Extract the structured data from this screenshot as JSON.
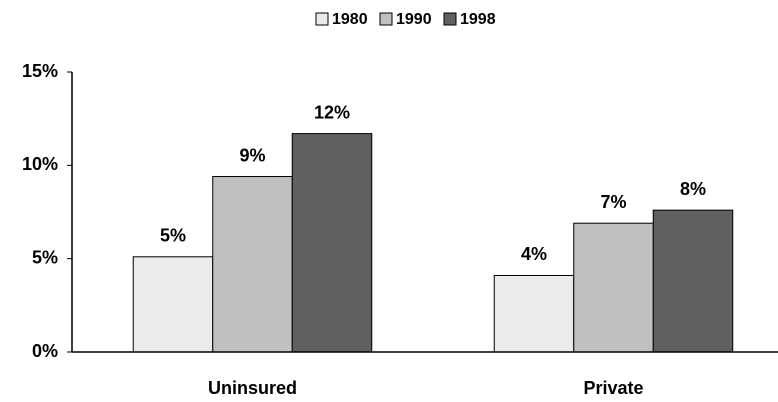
{
  "chart_data": {
    "type": "bar",
    "categories": [
      "Uninsured",
      "Private"
    ],
    "series": [
      {
        "name": "1980",
        "color": "#ebebeb",
        "values": [
          5.1,
          4.1
        ],
        "value_labels": [
          "5%",
          "4%"
        ]
      },
      {
        "name": "1990",
        "color": "#c0c0c0",
        "values": [
          9.4,
          6.9
        ],
        "value_labels": [
          "9%",
          "7%"
        ]
      },
      {
        "name": "1998",
        "color": "#606060",
        "values": [
          11.7,
          7.6
        ],
        "value_labels": [
          "12%",
          "8%"
        ]
      }
    ],
    "ylim": [
      0,
      15
    ],
    "yticks": [
      {
        "value": 0,
        "label": "0%"
      },
      {
        "value": 5,
        "label": "5%"
      },
      {
        "value": 10,
        "label": "10%"
      },
      {
        "value": 15,
        "label": "15%"
      }
    ],
    "grid": false,
    "legend": "top"
  }
}
